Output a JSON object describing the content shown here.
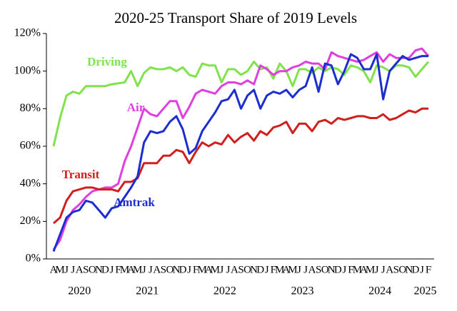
{
  "chart_data": {
    "type": "line",
    "title": "2020-25 Transport Share of 2019 Levels",
    "categories": [
      "A",
      "M",
      "J",
      "J",
      "A",
      "S",
      "O",
      "N",
      "D",
      "J",
      "F",
      "M",
      "A",
      "M",
      "J",
      "J",
      "A",
      "S",
      "O",
      "N",
      "D",
      "J",
      "F",
      "M",
      "A",
      "M",
      "J",
      "J",
      "A",
      "S",
      "O",
      "N",
      "D",
      "J",
      "F",
      "M",
      "A",
      "M",
      "J",
      "J",
      "A",
      "S",
      "O",
      "N",
      "D",
      "J",
      "F",
      "M",
      "A",
      "M",
      "J",
      "J",
      "A",
      "S",
      "O",
      "N",
      "D",
      "J",
      "F"
    ],
    "year_labels": [
      "2020",
      "2021",
      "2022",
      "2023",
      "2024",
      "2025"
    ],
    "ylim": [
      0,
      120
    ],
    "yticks": [
      {
        "value": 0,
        "label": "0%"
      },
      {
        "value": 20,
        "label": "20%"
      },
      {
        "value": 40,
        "label": "40%"
      },
      {
        "value": 60,
        "label": "60%"
      },
      {
        "value": 80,
        "label": "80%"
      },
      {
        "value": 100,
        "label": "100%"
      },
      {
        "value": 120,
        "label": "120%"
      }
    ],
    "series": [
      {
        "name": "Driving",
        "color": "#80e24c",
        "values": [
          60,
          75,
          87,
          89,
          88,
          92,
          92,
          92,
          92,
          93,
          93.5,
          94,
          100,
          92,
          99,
          102,
          101,
          101,
          102,
          100,
          102,
          98,
          97,
          104,
          103,
          103,
          94,
          101,
          101,
          98,
          100,
          105,
          101,
          102,
          96,
          104,
          100,
          92,
          101,
          101,
          99,
          102,
          100,
          102,
          101,
          98,
          103,
          102,
          100,
          94,
          103,
          102,
          100,
          103,
          103,
          102,
          97,
          101,
          105
        ]
      },
      {
        "name": "Air",
        "color": "#e03fe0",
        "values": [
          5,
          10,
          20,
          26,
          29,
          33,
          36,
          37,
          38,
          38,
          40,
          52,
          60,
          70,
          80,
          77,
          76,
          80,
          84,
          84,
          75,
          81,
          88,
          90,
          89,
          88,
          92,
          94,
          94,
          93,
          95,
          93,
          103,
          101,
          98,
          100,
          100,
          102,
          103,
          105,
          104,
          104,
          101,
          110,
          108,
          107,
          106,
          105,
          106,
          108,
          110,
          105,
          109,
          107,
          107,
          107,
          111,
          112,
          108
        ]
      },
      {
        "name": "Transit",
        "color": "#d0201e",
        "values": [
          19,
          22,
          31,
          36,
          37,
          38,
          38,
          37,
          37,
          37,
          36,
          41,
          41,
          43,
          51,
          51,
          51,
          55,
          55,
          58,
          57,
          51,
          57,
          62,
          60,
          62,
          61,
          66,
          62,
          65,
          67,
          63,
          68,
          66,
          70,
          71,
          73,
          67,
          72,
          72,
          68,
          73,
          74,
          72,
          75,
          74,
          75,
          76,
          76,
          75,
          75,
          77,
          74,
          75,
          77,
          79,
          78,
          80,
          80
        ]
      },
      {
        "name": "Amtrak",
        "color": "#1d2ed0",
        "values": [
          4,
          13,
          22,
          25,
          26,
          31,
          30,
          26,
          22,
          27,
          28,
          33,
          38,
          44,
          62,
          68,
          67,
          68,
          73,
          76,
          69,
          56,
          59,
          68,
          73,
          78,
          84,
          85,
          90,
          80,
          87,
          90,
          80,
          87,
          89,
          88,
          90,
          86,
          90,
          92,
          102,
          89,
          104,
          103,
          93,
          100,
          109,
          107,
          101,
          101,
          109,
          85,
          100,
          104,
          108,
          106,
          107,
          108,
          108
        ]
      }
    ]
  }
}
